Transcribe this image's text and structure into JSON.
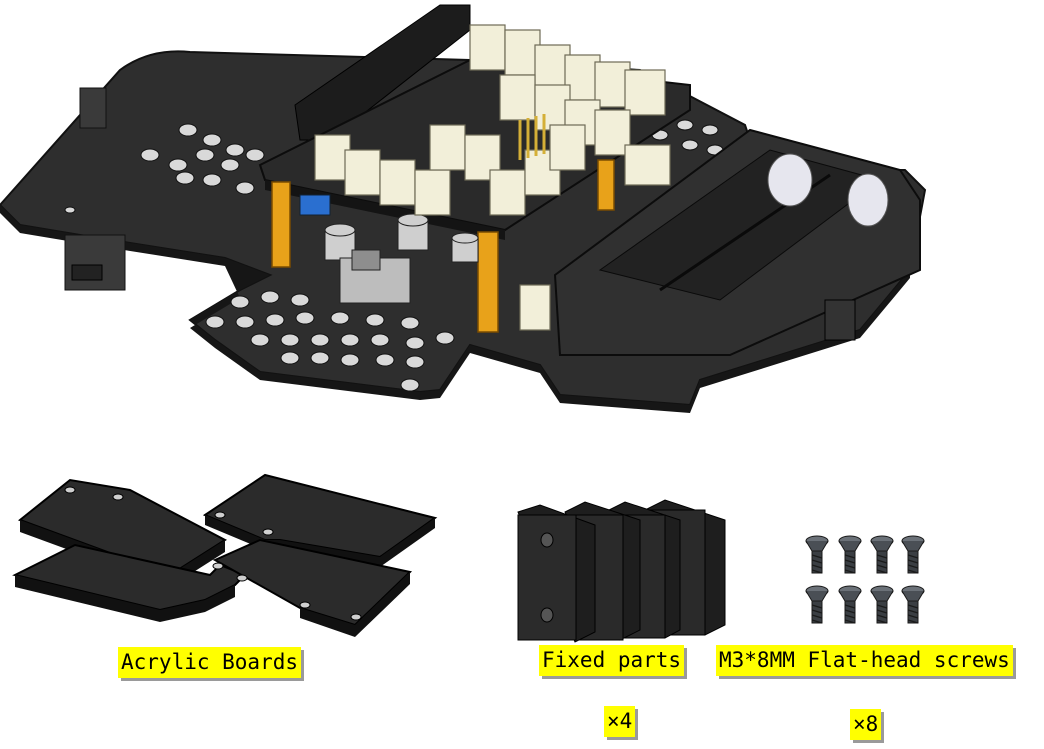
{
  "labels": {
    "acrylic_boards": "Acrylic Boards",
    "fixed_parts": "Fixed parts",
    "fixed_parts_qty": "×4",
    "screws": "M3*8MM Flat-head screws",
    "screws_qty": "×8"
  },
  "quantities": {
    "fixed_parts": 4,
    "screws": 8
  },
  "colors": {
    "board": "#2e2e2e",
    "board_edge": "#1a1a1a",
    "connector": "#f2efd9",
    "standoff": "#e8a21a",
    "label_bg": "#ffff00",
    "screw": "#4a4f55"
  },
  "icons": [
    "robot-chassis-assembly",
    "acrylic-board",
    "fixed-part-block",
    "flat-head-screw"
  ]
}
